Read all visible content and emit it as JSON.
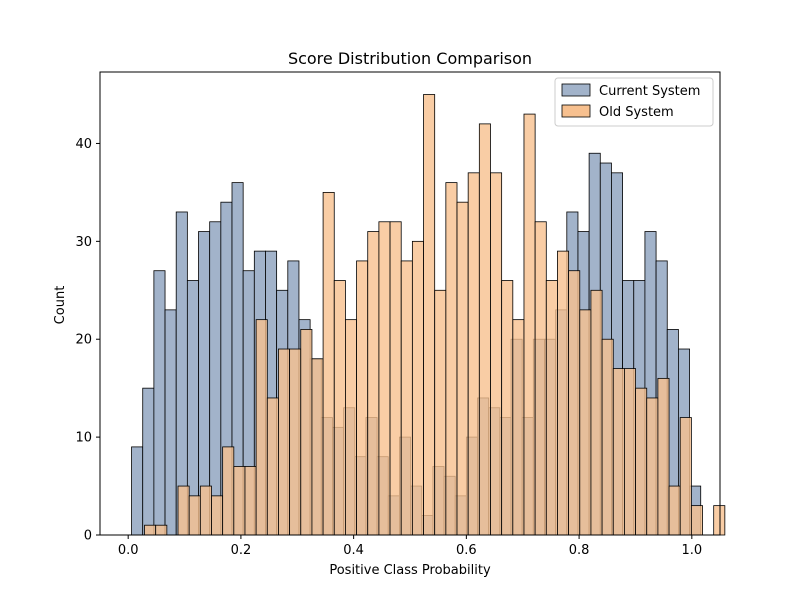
{
  "chart_data": {
    "type": "bar",
    "title": "Score Distribution Comparison",
    "xlabel": "Positive Class Probability",
    "ylabel": "Count",
    "xlim": [
      -0.05,
      1.05
    ],
    "ylim": [
      0,
      47.3
    ],
    "xticks": [
      0.0,
      0.2,
      0.4,
      0.6,
      0.8,
      1.0
    ],
    "xtick_labels": [
      "0.0",
      "0.2",
      "0.4",
      "0.6",
      "0.8",
      "1.0"
    ],
    "yticks": [
      0,
      10,
      20,
      30,
      40
    ],
    "ytick_labels": [
      "0",
      "10",
      "20",
      "30",
      "40"
    ],
    "grid": false,
    "legend_position": "top-right",
    "series": [
      {
        "name": "Current System",
        "color": "#a2b3ca",
        "bin_start": 0.006,
        "bin_width": 0.0198,
        "values": [
          9,
          15,
          27,
          23,
          33,
          26,
          31,
          32,
          34,
          36,
          27,
          29,
          29,
          25,
          28,
          22,
          18,
          12,
          11,
          13,
          8,
          12,
          8,
          4,
          10,
          5,
          2,
          7,
          6,
          4,
          10,
          14,
          13,
          12,
          20,
          12,
          20,
          20,
          23,
          33,
          31,
          39,
          38,
          37,
          26,
          26,
          31,
          28,
          21,
          19,
          5
        ]
      },
      {
        "name": "Old System",
        "color": "#f7c08f",
        "bin_start": 0.029,
        "bin_width": 0.0198,
        "values": [
          1,
          1,
          0,
          5,
          4,
          5,
          4,
          9,
          7,
          7,
          22,
          14,
          19,
          19,
          21,
          18,
          35,
          26,
          22,
          28,
          31,
          32,
          32,
          28,
          30,
          45,
          25,
          36,
          34,
          37,
          42,
          37,
          26,
          22,
          43,
          32,
          26,
          29,
          27,
          23,
          25,
          20,
          17,
          17,
          15,
          14,
          16,
          5,
          12,
          3,
          0,
          3
        ]
      }
    ]
  }
}
